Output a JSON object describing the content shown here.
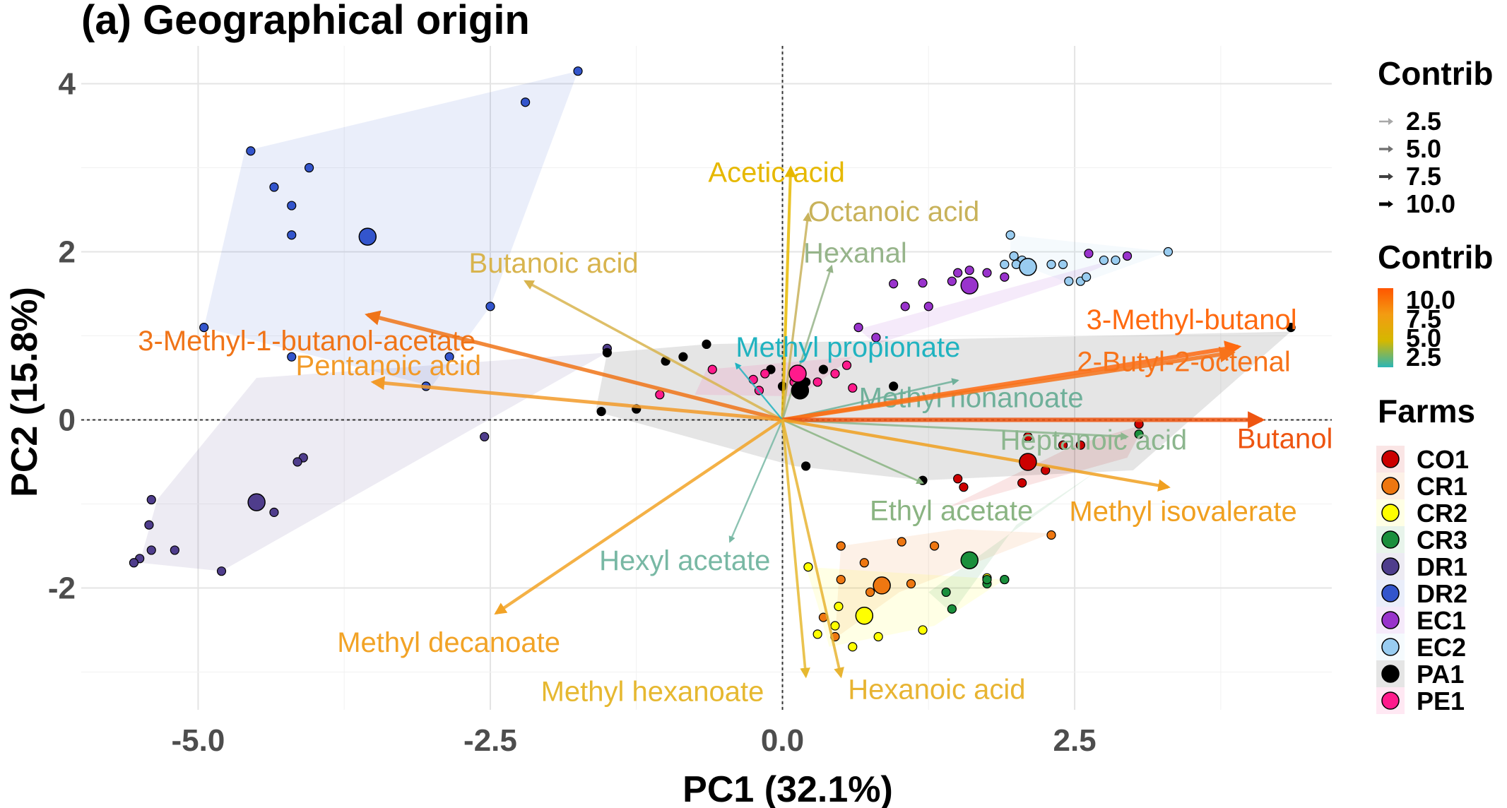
{
  "title": "(a) Geographical origin",
  "chart_data": {
    "type": "scatter",
    "title": "(a) Geographical origin",
    "xlabel": "PC1 (32.1%)",
    "ylabel": "PC2 (15.8%)",
    "xlim": [
      -6.0,
      4.7
    ],
    "ylim": [
      -3.45,
      4.45
    ],
    "xticks": [
      -5.0,
      -2.5,
      0.0,
      2.5
    ],
    "xtick_labels": [
      "-5.0",
      "-2.5",
      "0.0",
      "2.5"
    ],
    "yticks": [
      -2,
      0,
      2,
      4
    ],
    "ytick_labels": [
      "-2",
      "0",
      "2",
      "4"
    ],
    "grid": true,
    "reference_lines": {
      "x": 0,
      "y": 0
    },
    "size_legend": {
      "title": "Contrib",
      "labels": [
        "2.5",
        "5.0",
        "7.5",
        "10.0"
      ]
    },
    "color_legend": {
      "title": "Contrib",
      "labels": [
        "10.0",
        "7.5",
        "5.0",
        "2.5"
      ],
      "gradient": [
        "#ff5500",
        "#f39c12",
        "#d4b800",
        "#2bb5b5"
      ]
    },
    "farm_legend_title": "Farms",
    "legend_position": "right",
    "farms": [
      {
        "name": "CO1",
        "color": "#cc0000",
        "centroid": [
          2.1,
          -0.5
        ],
        "hull": [
          [
            2.5,
            -0.3
          ],
          [
            3.1,
            -0.05
          ],
          [
            2.95,
            -0.45
          ],
          [
            1.4,
            -1.05
          ]
        ],
        "points": [
          [
            2.1,
            -0.2
          ],
          [
            2.4,
            -0.3
          ],
          [
            2.55,
            -0.3
          ],
          [
            2.25,
            -0.6
          ],
          [
            1.5,
            -0.7
          ],
          [
            1.55,
            -0.8
          ],
          [
            2.05,
            -0.75
          ],
          [
            3.05,
            -0.05
          ]
        ]
      },
      {
        "name": "CR1",
        "color": "#ee7711",
        "centroid": [
          0.85,
          -1.97
        ],
        "hull": [
          [
            0.5,
            -1.5
          ],
          [
            1.5,
            -1.3
          ],
          [
            2.3,
            -1.35
          ],
          [
            1.0,
            -2.05
          ],
          [
            0.45,
            -2.6
          ]
        ],
        "points": [
          [
            0.5,
            -1.5
          ],
          [
            1.02,
            -1.45
          ],
          [
            1.3,
            -1.5
          ],
          [
            0.7,
            -1.7
          ],
          [
            0.5,
            -1.9
          ],
          [
            2.3,
            -1.37
          ],
          [
            0.75,
            -2.05
          ],
          [
            0.45,
            -2.58
          ],
          [
            0.35,
            -2.35
          ],
          [
            1.1,
            -1.95
          ]
        ]
      },
      {
        "name": "CR2",
        "color": "#ffff00",
        "centroid": [
          0.7,
          -2.33
        ],
        "hull": [
          [
            0.2,
            -1.75
          ],
          [
            1.9,
            -1.9
          ],
          [
            1.3,
            -2.45
          ],
          [
            0.4,
            -2.7
          ],
          [
            0.3,
            -2.2
          ]
        ],
        "points": [
          [
            0.22,
            -1.75
          ],
          [
            0.48,
            -2.22
          ],
          [
            1.9,
            -1.9
          ],
          [
            1.75,
            -1.88
          ],
          [
            0.45,
            -2.45
          ],
          [
            0.82,
            -2.58
          ],
          [
            0.6,
            -2.7
          ],
          [
            1.2,
            -2.5
          ],
          [
            0.3,
            -2.55
          ]
        ]
      },
      {
        "name": "CR3",
        "color": "#1a8f3c",
        "centroid": [
          1.6,
          -1.67
        ],
        "hull": [
          [
            3.0,
            -0.3
          ],
          [
            2.7,
            -0.6
          ],
          [
            2.0,
            -1.25
          ],
          [
            1.45,
            -2.3
          ],
          [
            1.25,
            -2.05
          ]
        ],
        "points": [
          [
            1.75,
            -1.95
          ],
          [
            1.4,
            -2.05
          ],
          [
            1.45,
            -2.25
          ],
          [
            1.75,
            -1.9
          ],
          [
            3.05,
            -0.17
          ],
          [
            1.9,
            -1.9
          ]
        ]
      },
      {
        "name": "DR1",
        "color": "#4f3d8c",
        "centroid": [
          -4.5,
          -0.98
        ],
        "hull": [
          [
            -4.5,
            0.5
          ],
          [
            -1.5,
            0.8
          ],
          [
            -4.8,
            -1.8
          ],
          [
            -5.5,
            -1.7
          ],
          [
            -5.35,
            -0.95
          ]
        ],
        "points": [
          [
            -4.1,
            -0.45
          ],
          [
            -4.15,
            -0.5
          ],
          [
            -5.4,
            -0.95
          ],
          [
            -5.42,
            -1.25
          ],
          [
            -5.2,
            -1.55
          ],
          [
            -5.4,
            -1.55
          ],
          [
            -5.5,
            -1.65
          ],
          [
            -5.55,
            -1.7
          ],
          [
            -4.8,
            -1.8
          ],
          [
            -4.35,
            -1.1
          ],
          [
            -2.55,
            -0.2
          ],
          [
            -1.5,
            0.85
          ]
        ]
      },
      {
        "name": "DR2",
        "color": "#3355cc",
        "centroid": [
          -3.55,
          2.18
        ],
        "hull": [
          [
            -1.75,
            4.15
          ],
          [
            -2.5,
            1.35
          ],
          [
            -3.0,
            0.4
          ],
          [
            -4.95,
            1.1
          ],
          [
            -4.6,
            3.2
          ]
        ],
        "points": [
          [
            -1.75,
            4.15
          ],
          [
            -2.2,
            3.78
          ],
          [
            -4.55,
            3.2
          ],
          [
            -4.35,
            2.77
          ],
          [
            -4.05,
            3.0
          ],
          [
            -4.2,
            2.55
          ],
          [
            -4.2,
            2.2
          ],
          [
            -2.5,
            1.35
          ],
          [
            -4.95,
            1.1
          ],
          [
            -2.85,
            0.75
          ],
          [
            -4.2,
            0.75
          ],
          [
            -3.05,
            0.4
          ]
        ]
      },
      {
        "name": "EC1",
        "color": "#9933cc",
        "centroid": [
          1.6,
          1.6
        ],
        "hull": [
          [
            2.95,
            1.95
          ],
          [
            2.35,
            1.6
          ],
          [
            0.8,
            0.9
          ],
          [
            0.65,
            1.08
          ]
        ],
        "points": [
          [
            2.62,
            1.98
          ],
          [
            2.95,
            1.95
          ],
          [
            1.5,
            1.75
          ],
          [
            1.6,
            1.78
          ],
          [
            1.75,
            1.75
          ],
          [
            1.9,
            1.7
          ],
          [
            0.95,
            1.62
          ],
          [
            1.2,
            1.63
          ],
          [
            1.45,
            1.65
          ],
          [
            1.05,
            1.35
          ],
          [
            1.25,
            1.35
          ],
          [
            0.8,
            0.98
          ],
          [
            0.65,
            1.1
          ]
        ]
      },
      {
        "name": "EC2",
        "color": "#99ccf0",
        "centroid": [
          2.1,
          1.82
        ],
        "hull": [
          [
            1.95,
            2.2
          ],
          [
            3.3,
            2.0
          ],
          [
            2.5,
            1.6
          ],
          [
            1.95,
            1.9
          ]
        ],
        "points": [
          [
            1.95,
            2.2
          ],
          [
            1.98,
            1.95
          ],
          [
            2.05,
            1.9
          ],
          [
            2.0,
            1.85
          ],
          [
            2.3,
            1.85
          ],
          [
            2.4,
            1.85
          ],
          [
            2.45,
            1.65
          ],
          [
            2.55,
            1.65
          ],
          [
            2.6,
            1.7
          ],
          [
            2.75,
            1.9
          ],
          [
            2.85,
            1.9
          ],
          [
            3.3,
            2.0
          ],
          [
            1.9,
            1.85
          ]
        ]
      },
      {
        "name": "PA1",
        "color": "#000000",
        "centroid": [
          0.15,
          0.35
        ],
        "hull": [
          [
            -1.5,
            0.8
          ],
          [
            -0.65,
            0.9
          ],
          [
            4.35,
            1.05
          ],
          [
            3.0,
            -0.6
          ],
          [
            1.2,
            -0.72
          ],
          [
            0.1,
            -0.55
          ],
          [
            -1.6,
            0.1
          ]
        ],
        "points": [
          [
            -1.55,
            0.1
          ],
          [
            -1.25,
            0.13
          ],
          [
            -1.5,
            0.8
          ],
          [
            -0.85,
            0.75
          ],
          [
            -1.0,
            0.7
          ],
          [
            -0.65,
            0.9
          ],
          [
            -0.1,
            0.6
          ],
          [
            0.2,
            0.45
          ],
          [
            0.35,
            0.6
          ],
          [
            0.95,
            0.4
          ],
          [
            4.35,
            1.1
          ],
          [
            1.2,
            -0.72
          ],
          [
            0.2,
            -0.55
          ],
          [
            0.0,
            0.4
          ]
        ]
      },
      {
        "name": "PE1",
        "color": "#ff1a8c",
        "centroid": [
          0.13,
          0.55
        ],
        "hull": [
          [
            -0.65,
            0.6
          ],
          [
            0.6,
            0.75
          ],
          [
            0.15,
            0.28
          ],
          [
            -0.75,
            0.3
          ]
        ],
        "points": [
          [
            -0.6,
            0.6
          ],
          [
            -0.15,
            0.55
          ],
          [
            -0.25,
            0.48
          ],
          [
            -1.05,
            0.3
          ],
          [
            -0.2,
            0.35
          ],
          [
            0.3,
            0.45
          ],
          [
            0.45,
            0.55
          ],
          [
            0.55,
            0.65
          ],
          [
            0.6,
            0.38
          ],
          [
            0.1,
            0.45
          ]
        ]
      }
    ],
    "variables": [
      {
        "name": "Acetic acid",
        "x": 0.07,
        "y": 3.0,
        "contrib": 5.8,
        "color": "#e6b800"
      },
      {
        "name": "Octanoic acid",
        "x": 0.22,
        "y": 2.45,
        "contrib": 3.8,
        "color": "#c8b25a"
      },
      {
        "name": "Hexanal",
        "x": 0.42,
        "y": 1.83,
        "contrib": 2.8,
        "color": "#96b48a"
      },
      {
        "name": "Butanoic acid",
        "x": -2.2,
        "y": 1.65,
        "contrib": 4.6,
        "color": "#d8b44e"
      },
      {
        "name": "3-Methyl-1-butanol-acetate",
        "x": -3.55,
        "y": 1.25,
        "contrib": 8.6,
        "color": "#f07418"
      },
      {
        "name": "Pentanoic acid",
        "x": -3.5,
        "y": 0.45,
        "contrib": 7.6,
        "color": "#f29a28"
      },
      {
        "name": "Methyl propionate",
        "x": -0.4,
        "y": 0.67,
        "contrib": 1.8,
        "color": "#20b3c0"
      },
      {
        "name": "Methyl nonanoate",
        "x": 1.5,
        "y": 0.47,
        "contrib": 2.5,
        "color": "#6fb09a"
      },
      {
        "name": "3-Methyl-butanol",
        "x": 3.9,
        "y": 0.87,
        "contrib": 9.8,
        "color": "#ff6a10"
      },
      {
        "name": "2-Butyl-2-octenal",
        "x": 3.85,
        "y": 0.8,
        "contrib": 9.2,
        "color": "#f7731a"
      },
      {
        "name": "Heptanoic acid",
        "x": 2.95,
        "y": -0.2,
        "contrib": 3.2,
        "color": "#8cb68e"
      },
      {
        "name": "Butanol",
        "x": 4.1,
        "y": 0.0,
        "contrib": 10.3,
        "color": "#ee5511"
      },
      {
        "name": "Ethyl acetate",
        "x": 1.2,
        "y": -0.75,
        "contrib": 2.6,
        "color": "#8ab482"
      },
      {
        "name": "Methyl isovalerate",
        "x": 3.3,
        "y": -0.8,
        "contrib": 6.4,
        "color": "#f0a020"
      },
      {
        "name": "Hexyl acetate",
        "x": -0.45,
        "y": -1.45,
        "contrib": 2.0,
        "color": "#78b8a4"
      },
      {
        "name": "Methyl decanoate",
        "x": -2.45,
        "y": -2.3,
        "contrib": 6.2,
        "color": "#f2a326"
      },
      {
        "name": "Methyl hexanoate",
        "x": 0.2,
        "y": -3.05,
        "contrib": 4.8,
        "color": "#e6b830"
      },
      {
        "name": "Hexanoic acid",
        "x": 0.5,
        "y": -3.05,
        "contrib": 5.0,
        "color": "#e8b432"
      }
    ]
  }
}
